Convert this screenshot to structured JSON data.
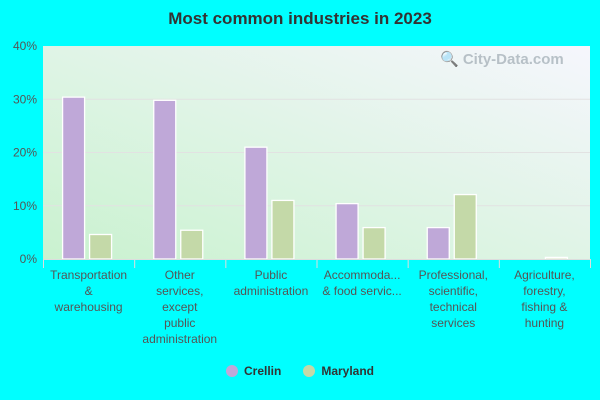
{
  "chart_data": {
    "type": "bar",
    "title": "Most common industries in 2023",
    "categories": [
      [
        "Transportation",
        "&",
        "warehousing"
      ],
      [
        "Other",
        "services,",
        "except",
        "public",
        "administration"
      ],
      [
        "Public",
        "administration"
      ],
      [
        "Accommoda...",
        "& food servic..."
      ],
      [
        "Professional,",
        "scientific,",
        "technical",
        "services"
      ],
      [
        "Agriculture,",
        "forestry,",
        "fishing &",
        "hunting"
      ]
    ],
    "series": [
      {
        "name": "Crellin",
        "color": "#bfa8d8",
        "values": [
          30.4,
          29.8,
          21.0,
          10.4,
          5.9,
          0
        ]
      },
      {
        "name": "Maryland",
        "color": "#c4d9a8",
        "values": [
          4.6,
          5.4,
          11.0,
          5.9,
          12.1,
          0.3
        ]
      }
    ],
    "ylim": [
      0,
      40
    ],
    "yticks": [
      "0%",
      "10%",
      "20%",
      "30%",
      "40%"
    ],
    "grid": true,
    "legend": "bottom"
  },
  "watermark": "City-Data.com"
}
